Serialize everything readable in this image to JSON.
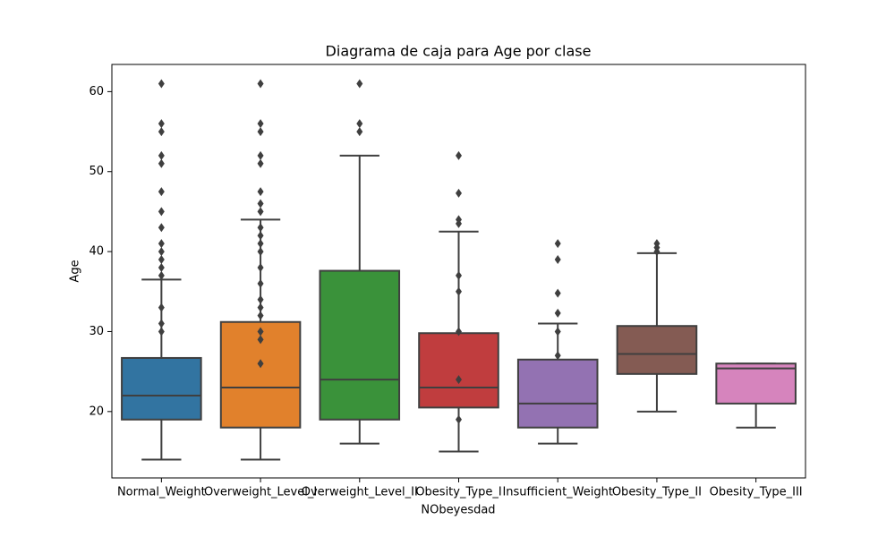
{
  "chart_data": {
    "type": "box",
    "title": "Diagrama de caja para Age por clase",
    "x_label": "NObeyesdad",
    "y_label": "Age",
    "categories": [
      "Normal_Weight",
      "Overweight_Level_I",
      "Overweight_Level_II",
      "Obesity_Type_I",
      "Insufficient_Weight",
      "Obesity_Type_II",
      "Obesity_Type_III"
    ],
    "colors": [
      "#3274a1",
      "#e1812c",
      "#3a923a",
      "#c03d3e",
      "#9372b2",
      "#845b53",
      "#d684bd"
    ],
    "boxes": [
      {
        "min": 14,
        "q1": 19,
        "median": 22,
        "q3": 26.7,
        "max": 36.5,
        "outliers": [
          61,
          56,
          55,
          52,
          51,
          47.5,
          45,
          43,
          41,
          40,
          39,
          38,
          37,
          33,
          31,
          30
        ]
      },
      {
        "min": 14,
        "q1": 18,
        "median": 23,
        "q3": 31.2,
        "max": 44,
        "outliers": [
          61,
          56,
          55,
          52,
          51,
          47.5,
          46,
          45,
          43,
          42,
          41,
          40,
          38,
          36,
          34,
          33,
          32,
          30,
          29,
          26
        ]
      },
      {
        "min": 16,
        "q1": 19,
        "median": 24,
        "q3": 37.6,
        "max": 52,
        "outliers": [
          61,
          56,
          55
        ]
      },
      {
        "min": 15,
        "q1": 20.5,
        "median": 23,
        "q3": 29.8,
        "max": 42.5,
        "outliers": [
          52,
          47.3,
          44,
          43.5,
          37,
          35,
          30,
          24,
          19
        ]
      },
      {
        "min": 16,
        "q1": 18,
        "median": 21,
        "q3": 26.5,
        "max": 31,
        "outliers": [
          41,
          39,
          34.8,
          32.3,
          30,
          27
        ]
      },
      {
        "min": 20,
        "q1": 24.7,
        "median": 27.2,
        "q3": 30.7,
        "max": 39.8,
        "outliers": [
          41,
          40.5,
          40
        ]
      },
      {
        "min": 18,
        "q1": 21,
        "median": 25.4,
        "q3": 26,
        "max": 26,
        "outliers": []
      }
    ],
    "ylim": [
      11.7,
      63.4
    ],
    "yticks": [
      20,
      30,
      40,
      50,
      60
    ]
  }
}
